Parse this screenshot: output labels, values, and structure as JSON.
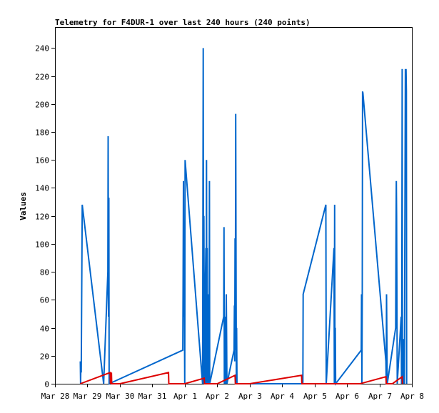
{
  "chart_data": {
    "type": "line",
    "title": "Telemetry for F4DUR-1 over last 240 hours (240 points)",
    "xlabel": "",
    "ylabel": "Values",
    "ylim": [
      0,
      255
    ],
    "xlim": [
      0,
      11
    ],
    "x_unit": "days from Mar 28 00:00",
    "y_ticks": [
      0,
      20,
      40,
      60,
      80,
      100,
      120,
      140,
      160,
      180,
      200,
      220,
      240
    ],
    "x_ticks": [
      {
        "x": 0,
        "label": "Mar 28"
      },
      {
        "x": 1,
        "label": "Mar 29"
      },
      {
        "x": 2,
        "label": "Mar 30"
      },
      {
        "x": 3,
        "label": "Mar 31"
      },
      {
        "x": 4,
        "label": "Apr 1"
      },
      {
        "x": 5,
        "label": "Apr 2"
      },
      {
        "x": 6,
        "label": "Apr 3"
      },
      {
        "x": 7,
        "label": "Apr 4"
      },
      {
        "x": 8,
        "label": "Apr 5"
      },
      {
        "x": 9,
        "label": "Apr 6"
      },
      {
        "x": 10,
        "label": "Apr 7"
      },
      {
        "x": 11,
        "label": "Apr 8"
      }
    ],
    "grid": false,
    "series": [
      {
        "color": "#0066cc",
        "points": [
          [
            0.78,
            16
          ],
          [
            0.79,
            0
          ],
          [
            0.8,
            16
          ],
          [
            0.81,
            8
          ],
          [
            0.84,
            128
          ],
          [
            1.5,
            0
          ],
          [
            1.63,
            80
          ],
          [
            1.64,
            177
          ],
          [
            1.65,
            48
          ],
          [
            1.66,
            133
          ],
          [
            1.67,
            0
          ],
          [
            3.94,
            24
          ],
          [
            3.95,
            72
          ],
          [
            3.96,
            145
          ],
          [
            3.97,
            48
          ],
          [
            3.98,
            104
          ],
          [
            4.0,
            0
          ],
          [
            4.01,
            160
          ],
          [
            4.52,
            8
          ],
          [
            4.55,
            0
          ],
          [
            4.57,
            240
          ],
          [
            4.58,
            0
          ],
          [
            4.59,
            120
          ],
          [
            4.6,
            48
          ],
          [
            4.62,
            0
          ],
          [
            4.63,
            64
          ],
          [
            4.65,
            97
          ],
          [
            4.66,
            0
          ],
          [
            4.67,
            160
          ],
          [
            4.68,
            48
          ],
          [
            4.69,
            97
          ],
          [
            4.7,
            0
          ],
          [
            4.72,
            64
          ],
          [
            4.73,
            0
          ],
          [
            4.74,
            48
          ],
          [
            4.75,
            0
          ],
          [
            4.76,
            145
          ],
          [
            4.77,
            0
          ],
          [
            5.2,
            48
          ],
          [
            5.21,
            112
          ],
          [
            5.22,
            0
          ],
          [
            5.24,
            32
          ],
          [
            5.25,
            48
          ],
          [
            5.26,
            0
          ],
          [
            5.28,
            64
          ],
          [
            5.29,
            32
          ],
          [
            5.3,
            0
          ],
          [
            5.52,
            24
          ],
          [
            5.53,
            56
          ],
          [
            5.54,
            16
          ],
          [
            5.55,
            104
          ],
          [
            5.56,
            24
          ],
          [
            5.57,
            193
          ],
          [
            5.58,
            104
          ],
          [
            5.59,
            0
          ],
          [
            5.6,
            40
          ],
          [
            5.61,
            0
          ],
          [
            7.64,
            0
          ],
          [
            7.65,
            64
          ],
          [
            8.35,
            128
          ],
          [
            8.36,
            0
          ],
          [
            8.6,
            97
          ],
          [
            8.61,
            0
          ],
          [
            8.62,
            128
          ],
          [
            8.63,
            0
          ],
          [
            8.64,
            40
          ],
          [
            8.65,
            0
          ],
          [
            9.44,
            24
          ],
          [
            9.45,
            64
          ],
          [
            9.46,
            0
          ],
          [
            9.47,
            64
          ],
          [
            9.48,
            209
          ],
          [
            9.49,
            208
          ],
          [
            10.2,
            16
          ],
          [
            10.21,
            0
          ],
          [
            10.22,
            64
          ],
          [
            10.23,
            32
          ],
          [
            10.24,
            0
          ],
          [
            10.5,
            40
          ],
          [
            10.51,
            97
          ],
          [
            10.52,
            145
          ],
          [
            10.53,
            120
          ],
          [
            10.54,
            56
          ],
          [
            10.55,
            0
          ],
          [
            10.67,
            48
          ],
          [
            10.68,
            0
          ],
          [
            10.69,
            64
          ],
          [
            10.7,
            225
          ],
          [
            10.71,
            0
          ],
          [
            10.73,
            32
          ],
          [
            10.74,
            0
          ],
          [
            10.76,
            32
          ],
          [
            10.77,
            0
          ],
          [
            10.8,
            225
          ],
          [
            10.81,
            160
          ],
          [
            10.82,
            225
          ],
          [
            10.83,
            209
          ],
          [
            10.84,
            0
          ]
        ]
      },
      {
        "color": "#dd0000",
        "points": [
          [
            0.78,
            0
          ],
          [
            1.7,
            8
          ],
          [
            1.71,
            0
          ],
          [
            1.74,
            8
          ],
          [
            1.75,
            0
          ],
          [
            2.0,
            0
          ],
          [
            3.5,
            8
          ],
          [
            3.51,
            0
          ],
          [
            4.0,
            0
          ],
          [
            4.6,
            4
          ],
          [
            4.61,
            0
          ],
          [
            5.0,
            0
          ],
          [
            5.55,
            6
          ],
          [
            5.56,
            0
          ],
          [
            6.0,
            0
          ],
          [
            7.6,
            6
          ],
          [
            7.61,
            0
          ],
          [
            9.4,
            0
          ],
          [
            10.2,
            5
          ],
          [
            10.21,
            0
          ],
          [
            10.4,
            0
          ],
          [
            10.7,
            5
          ],
          [
            10.71,
            0
          ]
        ]
      }
    ]
  }
}
